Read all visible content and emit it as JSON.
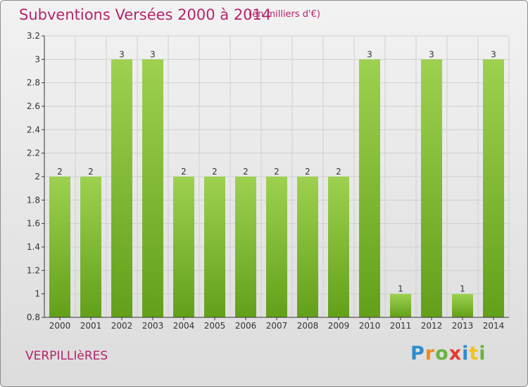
{
  "header": {
    "title": "Subventions Versées 2000 à 2014",
    "subtitle": "(en milliers d'€)"
  },
  "footer": {
    "commune": "VERPILLIèRES",
    "brand_letters": [
      {
        "char": "P",
        "color": "#2e8ccf"
      },
      {
        "char": "r",
        "color": "#f08a1c"
      },
      {
        "char": "o",
        "color": "#6cb33f"
      },
      {
        "char": "x",
        "color": "#e63a2e"
      },
      {
        "char": "i",
        "color": "#2e8ccf"
      },
      {
        "char": "t",
        "color": "#f3c11b"
      },
      {
        "char": "i",
        "color": "#6cb33f"
      }
    ]
  },
  "chart_data": {
    "type": "bar",
    "categories": [
      "2000",
      "2001",
      "2002",
      "2003",
      "2004",
      "2005",
      "2006",
      "2007",
      "2008",
      "2009",
      "2010",
      "2011",
      "2012",
      "2013",
      "2014"
    ],
    "values": [
      2,
      2,
      3,
      3,
      2,
      2,
      2,
      2,
      2,
      2,
      3,
      1,
      3,
      1,
      3
    ],
    "data_labels": [
      "2",
      "2",
      "3",
      "3",
      "2",
      "2",
      "2",
      "2",
      "2",
      "2",
      "3",
      "1",
      "3",
      "1",
      "3"
    ],
    "ylim": [
      0.8,
      3.2
    ],
    "yticks": [
      0.8,
      1,
      1.2,
      1.4,
      1.6,
      1.8,
      2,
      2.2,
      2.4,
      2.6,
      2.8,
      3,
      3.2
    ],
    "ytick_labels": [
      "0.8",
      "1",
      "1.2",
      "1.4",
      "1.6",
      "1.8",
      "2",
      "2.2",
      "2.4",
      "2.6",
      "2.8",
      "3",
      "3.2"
    ],
    "grid": true,
    "bar_color_top": "#9dd14f",
    "bar_color_bottom": "#63a01a",
    "grid_color": "#cfcfcf"
  }
}
